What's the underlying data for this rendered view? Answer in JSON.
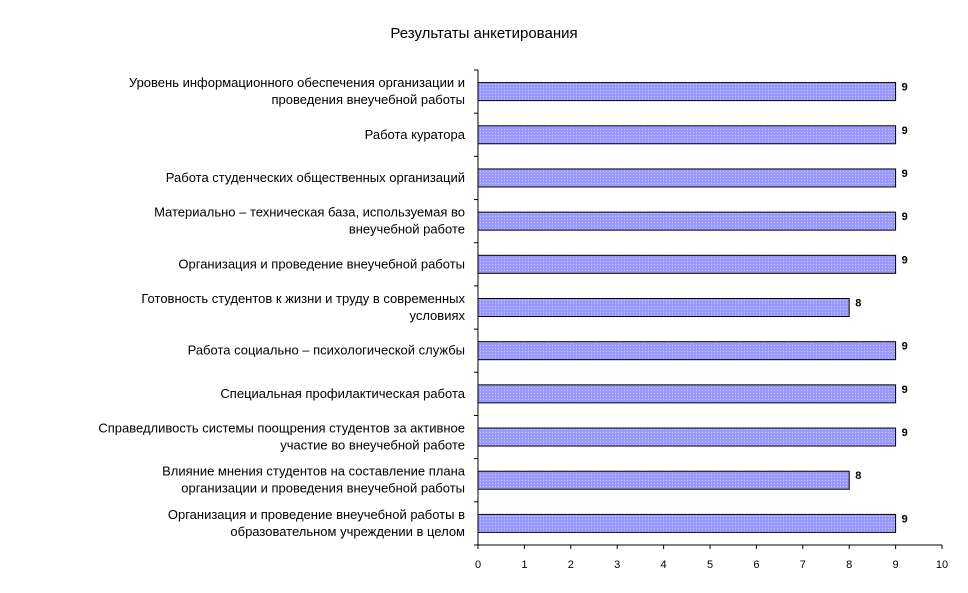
{
  "chart_data": {
    "type": "bar",
    "orientation": "horizontal",
    "title": "Результаты анкетирования",
    "categories": [
      [
        "Уровень информационного обеспечения организации и",
        "проведения внеучебной работы"
      ],
      [
        "Работа куратора"
      ],
      [
        "Работа студенческих общественных организаций"
      ],
      [
        "Материально – техническая база, используемая во",
        "внеучебной работе"
      ],
      [
        "Организация и проведение внеучебной работы"
      ],
      [
        "Готовность студентов к жизни и труду в современных",
        "условиях"
      ],
      [
        "Работа социально – психологической службы"
      ],
      [
        "Специальная профилактическая работа"
      ],
      [
        "Справедливость системы поощрения студентов за активное",
        "участие во внеучебной работе"
      ],
      [
        "Влияние мнения студентов на составление плана",
        "организации и проведения внеучебной работы"
      ],
      [
        "Организация и проведение внеучебной работы в",
        "образовательном учреждении в целом"
      ]
    ],
    "values": [
      9,
      9,
      9,
      9,
      9,
      8,
      9,
      9,
      9,
      8,
      9
    ],
    "data_labels": [
      "9",
      "9",
      "9",
      "9",
      "9",
      "8",
      "9",
      "9",
      "9",
      "8",
      "9"
    ],
    "xlim": [
      0,
      10
    ],
    "x_ticks": [
      "0",
      "1",
      "2",
      "3",
      "4",
      "5",
      "6",
      "7",
      "8",
      "9",
      "10"
    ],
    "bar_color": "#9999ff",
    "grid": false,
    "legend": false
  }
}
